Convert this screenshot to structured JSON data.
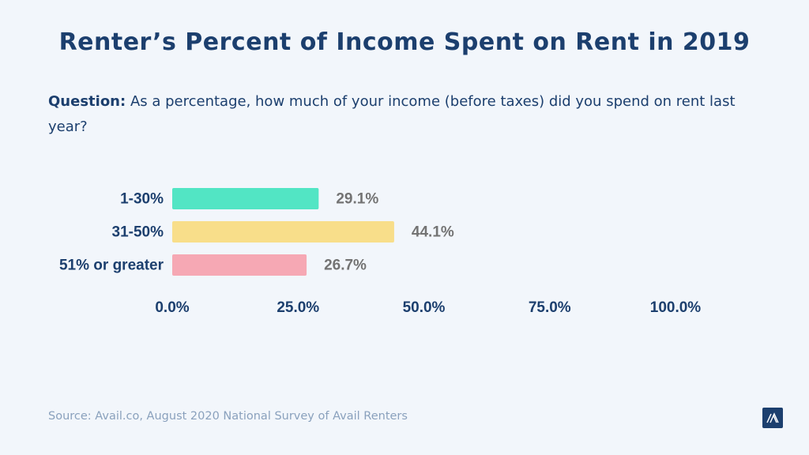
{
  "title": "Renter’s Percent of Income Spent on Rent in 2019",
  "question": {
    "label": "Question:",
    "text": "As a percentage, how much of your income (before taxes) did you spend on rent last year?"
  },
  "source": "Source: Avail.co, August 2020 National Survey of Avail Renters",
  "logo": {
    "icon": "avail-logo-icon",
    "color": "#1c3f6e"
  },
  "chart_data": {
    "type": "bar",
    "orientation": "horizontal",
    "categories": [
      "1-30%",
      "31-50%",
      "51% or greater"
    ],
    "values": [
      29.1,
      44.1,
      26.7
    ],
    "data_labels": [
      "29.1%",
      "44.1%",
      "26.7%"
    ],
    "colors": [
      "#52e5c4",
      "#f8de8a",
      "#f6a8b4"
    ],
    "xlim": [
      0,
      100
    ],
    "xticks": [
      0,
      25,
      50,
      75,
      100
    ],
    "xtick_labels": [
      "0.0%",
      "25.0%",
      "50.0%",
      "75.0%",
      "100.0%"
    ],
    "grid": false,
    "legend": "none"
  }
}
